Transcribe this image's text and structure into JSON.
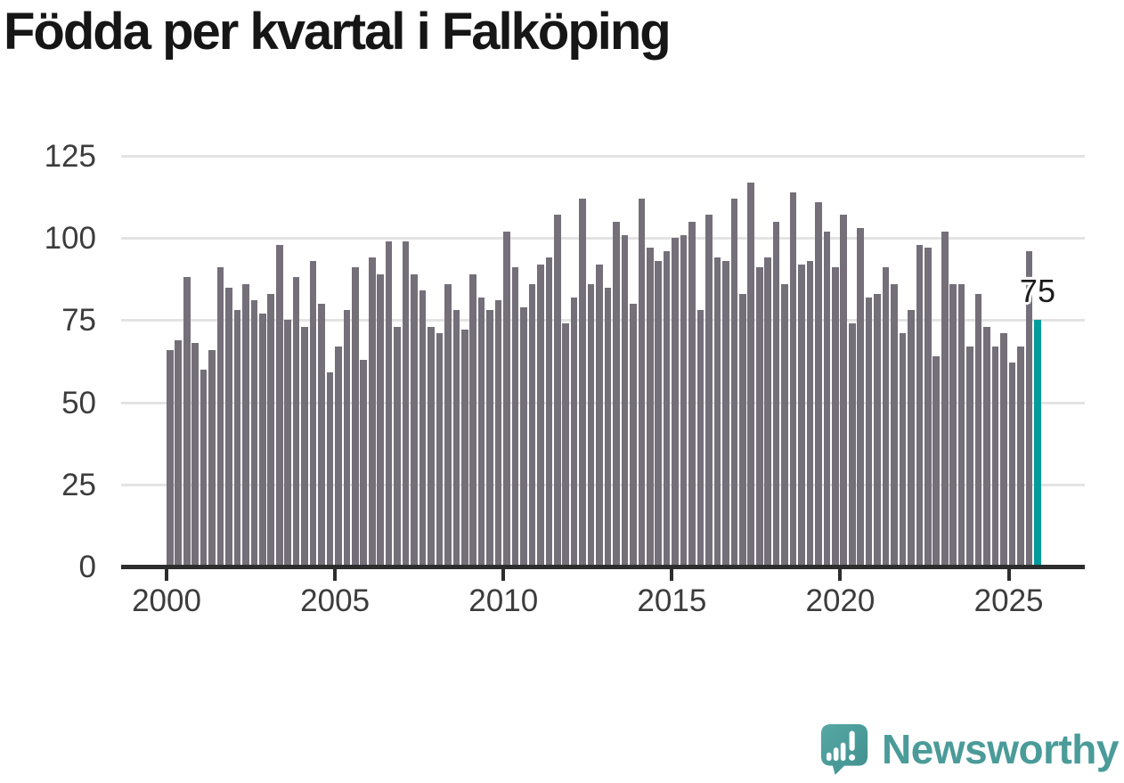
{
  "title": "Födda per kvartal i Falköping",
  "footer": {
    "brand": "Newsworthy"
  },
  "colors": {
    "bar": "#746f79",
    "highlight": "#009c9c",
    "axis": "#2d2d2d",
    "grid": "#e3e3e3",
    "tick_label": "#3c3c3c",
    "logo_teal": "#4a9b99"
  },
  "chart_data": {
    "type": "bar",
    "title": "Födda per kvartal i Falköping",
    "xlabel": "",
    "ylabel": "",
    "x_unit": "quarter",
    "ylim": [
      0,
      125
    ],
    "yticks": [
      0,
      25,
      50,
      75,
      100,
      125
    ],
    "xticks": [
      2000,
      2005,
      2010,
      2015,
      2020,
      2025
    ],
    "grid": true,
    "legend": "none",
    "years": [
      {
        "year": 2000,
        "values": [
          66,
          69,
          88,
          68
        ]
      },
      {
        "year": 2001,
        "values": [
          60,
          66,
          91,
          85
        ]
      },
      {
        "year": 2002,
        "values": [
          78,
          86,
          81,
          77
        ]
      },
      {
        "year": 2003,
        "values": [
          83,
          98,
          75,
          88
        ]
      },
      {
        "year": 2004,
        "values": [
          73,
          93,
          80,
          59
        ]
      },
      {
        "year": 2005,
        "values": [
          67,
          78,
          91,
          63
        ]
      },
      {
        "year": 2006,
        "values": [
          94,
          89,
          99,
          73
        ]
      },
      {
        "year": 2007,
        "values": [
          99,
          89,
          84,
          73
        ]
      },
      {
        "year": 2008,
        "values": [
          71,
          86,
          78,
          72
        ]
      },
      {
        "year": 2009,
        "values": [
          89,
          82,
          78,
          81
        ]
      },
      {
        "year": 2010,
        "values": [
          102,
          91,
          79,
          86
        ]
      },
      {
        "year": 2011,
        "values": [
          92,
          94,
          107,
          74
        ]
      },
      {
        "year": 2012,
        "values": [
          82,
          112,
          86,
          92
        ]
      },
      {
        "year": 2013,
        "values": [
          85,
          105,
          101,
          80
        ]
      },
      {
        "year": 2014,
        "values": [
          112,
          97,
          93,
          96
        ]
      },
      {
        "year": 2015,
        "values": [
          100,
          101,
          105,
          78
        ]
      },
      {
        "year": 2016,
        "values": [
          107,
          94,
          93,
          112
        ]
      },
      {
        "year": 2017,
        "values": [
          83,
          117,
          91,
          94
        ]
      },
      {
        "year": 2018,
        "values": [
          105,
          86,
          114,
          92
        ]
      },
      {
        "year": 2019,
        "values": [
          93,
          111,
          102,
          91
        ]
      },
      {
        "year": 2020,
        "values": [
          107,
          74,
          103,
          82
        ]
      },
      {
        "year": 2021,
        "values": [
          83,
          91,
          86,
          71
        ]
      },
      {
        "year": 2022,
        "values": [
          78,
          98,
          97,
          64
        ]
      },
      {
        "year": 2023,
        "values": [
          102,
          86,
          86,
          67
        ]
      },
      {
        "year": 2024,
        "values": [
          83,
          73,
          67,
          71
        ]
      },
      {
        "year": 2025,
        "values": [
          62,
          67,
          96,
          75
        ]
      }
    ],
    "highlight": {
      "quarter": "2025 Q4",
      "value": 75,
      "label": "75",
      "position": "last"
    }
  }
}
